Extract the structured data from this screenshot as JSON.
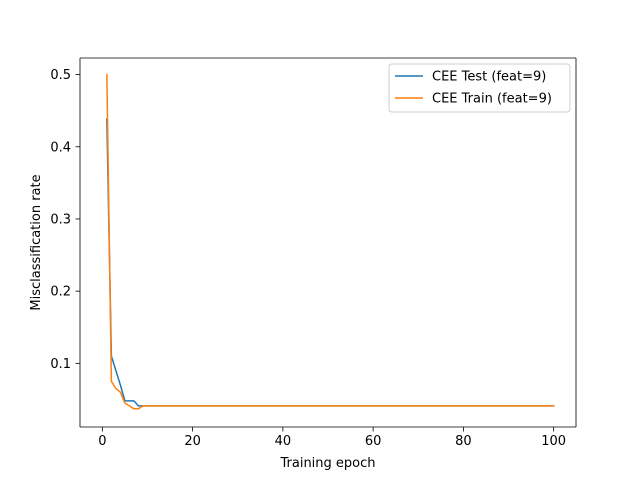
{
  "chart_data": {
    "type": "line",
    "title": "",
    "xlabel": "Training epoch",
    "ylabel": "Misclassification rate",
    "xlim": [
      -4.95,
      104.95
    ],
    "ylim": [
      0.0118,
      0.523
    ],
    "xticks": [
      0,
      20,
      40,
      60,
      80,
      100
    ],
    "yticks": [
      0.1,
      0.2,
      0.3,
      0.4,
      0.5
    ],
    "xtick_labels": [
      "0",
      "20",
      "40",
      "60",
      "80",
      "100"
    ],
    "ytick_labels": [
      "0.1",
      "0.2",
      "0.3",
      "0.4",
      "0.5"
    ],
    "grid": false,
    "legend_position": "upper right",
    "series": [
      {
        "name": "CEE Test (feat=9)",
        "color": "#1f77b4",
        "x": [
          1,
          2,
          3,
          4,
          5,
          6,
          7,
          8,
          9,
          10,
          15,
          20,
          30,
          40,
          50,
          60,
          70,
          80,
          90,
          100
        ],
        "y": [
          0.438,
          0.11,
          0.09,
          0.07,
          0.048,
          0.048,
          0.048,
          0.041,
          0.041,
          0.041,
          0.041,
          0.041,
          0.041,
          0.041,
          0.041,
          0.041,
          0.041,
          0.041,
          0.041,
          0.041
        ]
      },
      {
        "name": "CEE Train (feat=9)",
        "color": "#ff7f0e",
        "x": [
          1,
          2,
          3,
          4,
          5,
          6,
          7,
          8,
          9,
          10,
          15,
          20,
          30,
          40,
          50,
          60,
          70,
          80,
          90,
          100
        ],
        "y": [
          0.5,
          0.075,
          0.065,
          0.06,
          0.045,
          0.041,
          0.037,
          0.037,
          0.041,
          0.041,
          0.041,
          0.041,
          0.041,
          0.041,
          0.041,
          0.041,
          0.041,
          0.041,
          0.041,
          0.041
        ]
      }
    ]
  }
}
